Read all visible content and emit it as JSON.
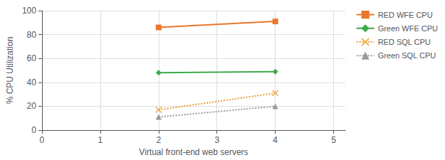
{
  "chart_data": {
    "type": "line",
    "x_label": "Virtual front-end web servers",
    "y_label": "% CPU Utilization",
    "x": [
      2,
      4
    ],
    "series": [
      {
        "name": "RED WFE CPU",
        "color": "#E8782A",
        "marker": "square",
        "line_style": "solid",
        "values": [
          86,
          91
        ]
      },
      {
        "name": "Green WFE CPU",
        "color": "#3DAA4C",
        "marker": "diamond",
        "line_style": "solid",
        "values": [
          48,
          49
        ]
      },
      {
        "name": "RED SQL CPU",
        "color": "#E8A030",
        "marker": "x",
        "line_style": "dotted",
        "values": [
          17,
          31
        ]
      },
      {
        "name": "Green SQL CPU",
        "color": "#999999",
        "marker": "triangle",
        "line_style": "dotted",
        "values": [
          11,
          20
        ]
      }
    ],
    "xlim": [
      0,
      5.2
    ],
    "xticks": [
      0,
      1,
      2,
      3,
      4,
      5
    ],
    "ylim": [
      0,
      100
    ],
    "yticks": [
      0,
      20,
      40,
      60,
      80,
      100
    ],
    "grid": true,
    "legend": "right"
  }
}
